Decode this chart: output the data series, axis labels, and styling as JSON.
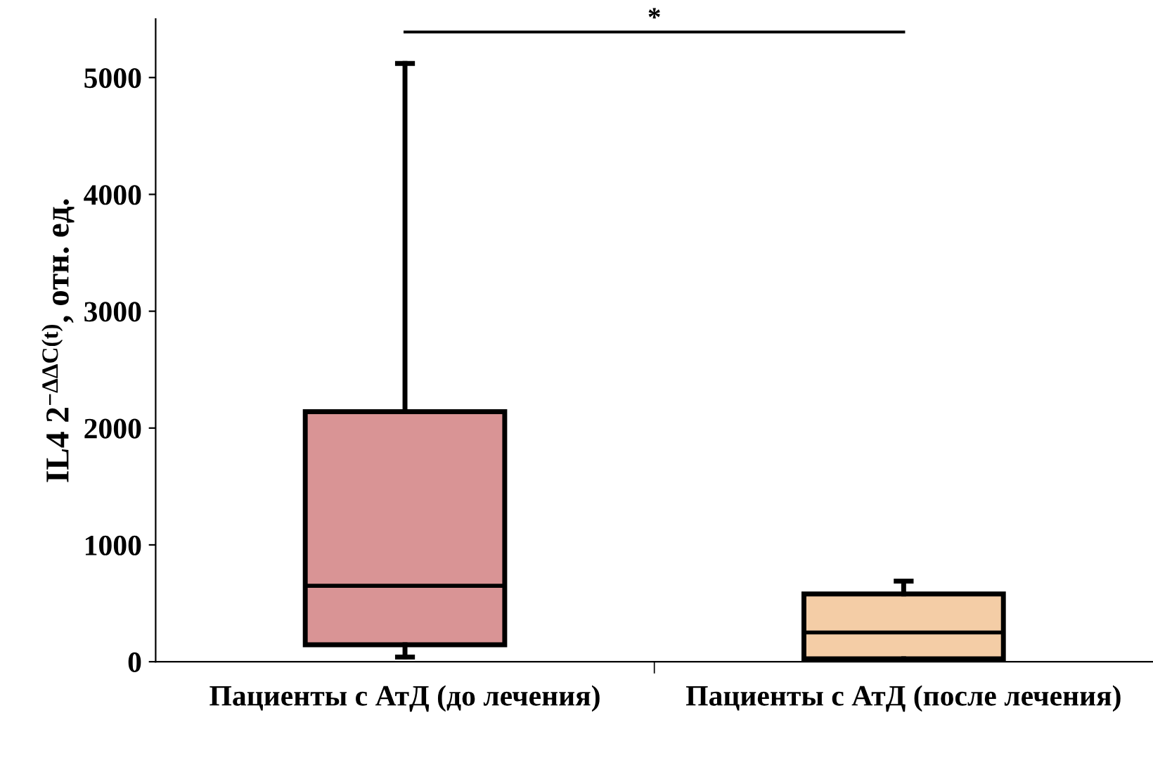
{
  "chart_data": {
    "type": "box",
    "ylabel": "IL4 2$^{−ΔΔC(t)}$, отн. ед.",
    "categories": [
      "Пациенты с АтД (до лечения)",
      "Пациенты с АтД (после лечения)"
    ],
    "colors": [
      "#d99495",
      "#f4cda6"
    ],
    "boxes": [
      {
        "low": 40,
        "q1": 145,
        "median": 650,
        "q3": 2140,
        "high": 5120
      },
      {
        "low": 20,
        "q1": 25,
        "median": 250,
        "q3": 580,
        "high": 690
      }
    ],
    "ylim": [
      0,
      5500
    ],
    "yticks": [
      0,
      1000,
      2000,
      3000,
      4000,
      5000
    ],
    "annotations": [
      "*"
    ],
    "grid": false
  }
}
